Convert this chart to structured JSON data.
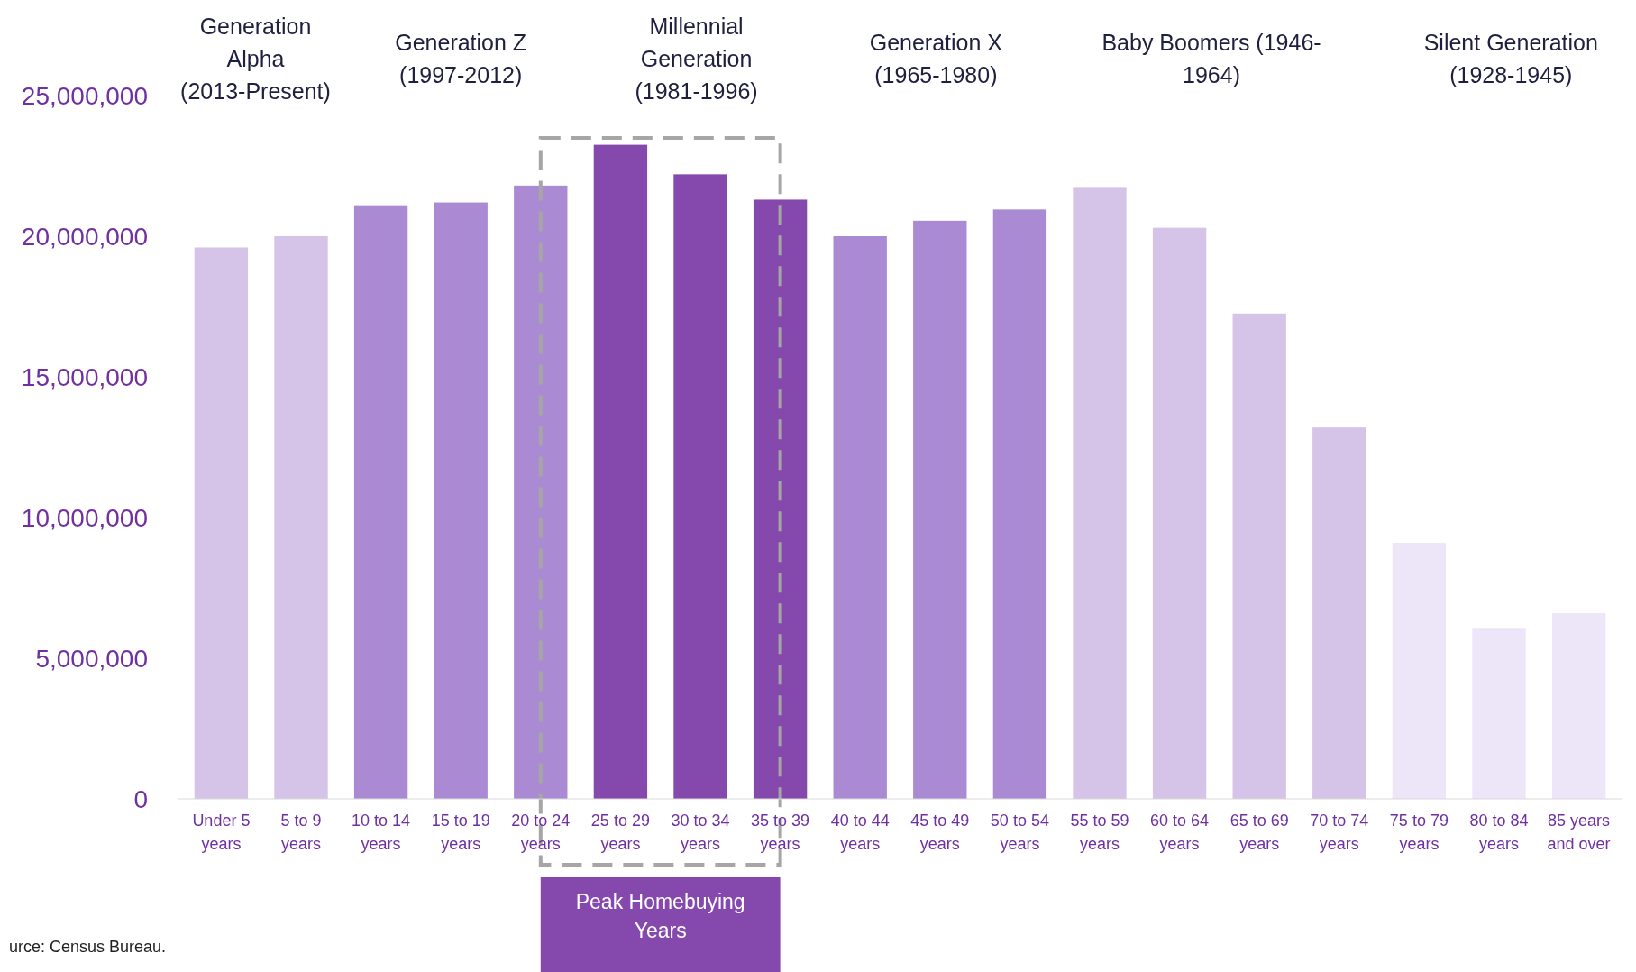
{
  "chart_data": {
    "type": "bar",
    "categories": [
      "Under 5 years",
      "5 to 9 years",
      "10 to 14 years",
      "15 to 19 years",
      "20 to 24 years",
      "25 to 29 years",
      "30 to 34 years",
      "35 to 39 years",
      "40 to 44 years",
      "45 to 49 years",
      "50 to 54 years",
      "55 to 59 years",
      "60 to 64 years",
      "65 to 69 years",
      "70 to 74 years",
      "75 to 79 years",
      "80 to 84 years",
      "85 years and over"
    ],
    "values": [
      19600000,
      20000000,
      21100000,
      21200000,
      21800000,
      23250000,
      22200000,
      21300000,
      20000000,
      20550000,
      20950000,
      21750000,
      20300000,
      17250000,
      13200000,
      9100000,
      6050000,
      6600000
    ],
    "colors": [
      "#d5c4e8",
      "#d5c4e8",
      "#a98ad3",
      "#a98ad3",
      "#a98ad3",
      "#8549ad",
      "#8549ad",
      "#8549ad",
      "#a98ad3",
      "#a98ad3",
      "#a98ad3",
      "#d5c4e8",
      "#d5c4e8",
      "#d5c4e8",
      "#d5c4e8",
      "#ede6f9",
      "#ede6f9",
      "#ede6f9"
    ],
    "ylim": [
      0,
      25000000
    ],
    "yticks": [
      {
        "value": 0,
        "label": "0"
      },
      {
        "value": 5000000,
        "label": "5,000,000"
      },
      {
        "value": 10000000,
        "label": "10,000,000"
      },
      {
        "value": 15000000,
        "label": "15,000,000"
      },
      {
        "value": 20000000,
        "label": "20,000,000"
      },
      {
        "value": 25000000,
        "label": "25,000,000"
      }
    ],
    "grid": false,
    "annotations": [
      "Peak Homebuying Years",
      "Generation\nAlpha\n(2013-Present)",
      "Generation Z\n(1997-2012)",
      "Millennial\nGeneration\n(1981-1996)",
      "Generation X\n(1965-1980)",
      "Baby Boomers (1946-\n1964)",
      "Silent Generation\n(1928-1945)",
      "urce: Census Bureau."
    ]
  }
}
